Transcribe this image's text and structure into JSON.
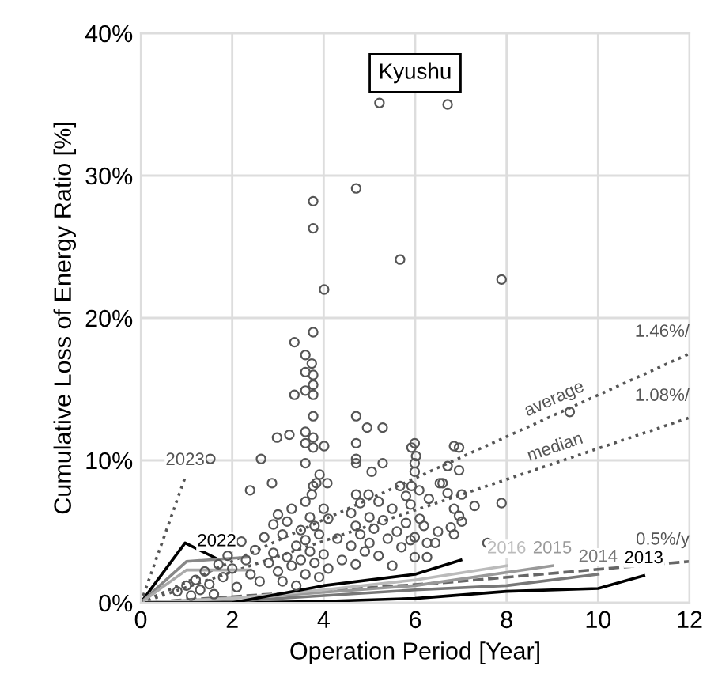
{
  "chart_data": {
    "type": "scatter",
    "title": "Kyushu",
    "xlabel": "Operation Period [Year]",
    "ylabel": "Cumulative Loss of Energy Ratio [%]",
    "xlim": [
      0,
      12
    ],
    "xticks": [
      0,
      2,
      4,
      6,
      8,
      10,
      12
    ],
    "ylim": [
      0,
      40
    ],
    "yticks": [
      {
        "value": 0,
        "label": "0%"
      },
      {
        "value": 10,
        "label": "10%"
      },
      {
        "value": 20,
        "label": "20%"
      },
      {
        "value": 30,
        "label": "30%"
      },
      {
        "value": 40,
        "label": "40%"
      }
    ],
    "grid": true,
    "series": [
      {
        "color": "#555555",
        "marker": "circle",
        "x": [
          5.22,
          6.71,
          4.71,
          3.77,
          3.77,
          5.67,
          4.01,
          7.89,
          3.36,
          3.77,
          3.6,
          3.74,
          3.6,
          3.77,
          3.77,
          3.6,
          3.36,
          3.77,
          3.77,
          4.71,
          4.95,
          5.29,
          2.98,
          3.25,
          3.6,
          3.77,
          3.6,
          3.77,
          4.01,
          4.71,
          4.71,
          4.71,
          5.29,
          5.05,
          5.99,
          5.92,
          6.02,
          5.99,
          5.99,
          2.63,
          1.52,
          3.6,
          3.91,
          3.77,
          3.84,
          4.08,
          2.87,
          2.39,
          3.74,
          4.71,
          4.98,
          5.67,
          5.92,
          6.09,
          6.54,
          6.85,
          6.96,
          6.71,
          6.96,
          6.6,
          6.71,
          7.02,
          7.3,
          7.89,
          6.85,
          6.96,
          7.02,
          6.78,
          6.85,
          6.19,
          7.58,
          6.26,
          6.44,
          5.99,
          5.99,
          6.26,
          9.38,
          0.8,
          1.0,
          1.1,
          1.2,
          1.3,
          1.4,
          1.5,
          1.6,
          1.7,
          1.8,
          1.9,
          2.0,
          2.1,
          2.2,
          2.3,
          2.4,
          2.5,
          2.6,
          2.7,
          2.8,
          2.9,
          2.9,
          3.0,
          3.0,
          3.1,
          3.1,
          3.2,
          3.2,
          3.3,
          3.3,
          3.4,
          3.4,
          3.5,
          3.5,
          3.6,
          3.6,
          3.6,
          3.7,
          3.7,
          3.8,
          3.8,
          3.9,
          3.9,
          4.0,
          4.0,
          4.1,
          4.1,
          4.3,
          4.4,
          4.6,
          4.6,
          4.7,
          4.7,
          4.8,
          4.8,
          4.9,
          5.0,
          5.0,
          5.1,
          5.2,
          5.2,
          5.3,
          5.4,
          5.5,
          5.5,
          5.6,
          5.7,
          5.8,
          5.8,
          5.9,
          5.9,
          6.1,
          6.3,
          6.5
        ],
        "values": [
          35.1,
          35.0,
          29.1,
          28.2,
          26.3,
          24.1,
          22.0,
          22.7,
          18.3,
          19.0,
          17.4,
          16.8,
          16.2,
          16.0,
          15.3,
          14.9,
          14.6,
          14.6,
          13.1,
          13.1,
          12.3,
          12.3,
          11.6,
          11.8,
          12.0,
          11.6,
          11.2,
          10.9,
          11.0,
          11.2,
          10.1,
          9.8,
          9.8,
          9.2,
          11.2,
          10.9,
          10.3,
          9.8,
          9.2,
          10.1,
          10.1,
          9.8,
          9.0,
          8.2,
          8.4,
          8.4,
          8.4,
          7.9,
          7.6,
          7.6,
          7.6,
          8.2,
          8.2,
          7.9,
          8.4,
          11.0,
          10.9,
          9.6,
          9.3,
          8.4,
          7.7,
          7.6,
          6.8,
          7.0,
          6.6,
          6.1,
          5.7,
          5.3,
          4.8,
          5.4,
          4.2,
          4.2,
          4.2,
          4.6,
          3.2,
          3.2,
          13.4,
          0.8,
          1.2,
          0.5,
          1.6,
          0.9,
          2.2,
          1.3,
          0.6,
          2.7,
          1.8,
          3.3,
          2.4,
          1.1,
          4.3,
          3.0,
          2.0,
          3.7,
          1.5,
          4.6,
          2.8,
          5.5,
          3.5,
          6.2,
          2.2,
          4.8,
          1.5,
          5.7,
          3.2,
          6.6,
          2.6,
          4.0,
          1.2,
          5.1,
          3.0,
          7.1,
          4.4,
          2.0,
          6.0,
          3.6,
          5.4,
          2.8,
          4.8,
          1.8,
          6.6,
          3.4,
          5.9,
          2.4,
          4.5,
          3.0,
          6.3,
          4.0,
          5.4,
          2.7,
          7.0,
          4.8,
          3.6,
          6.0,
          4.2,
          5.2,
          7.1,
          3.3,
          5.8,
          4.5,
          2.6,
          6.6,
          5.0,
          3.9,
          7.5,
          5.6,
          4.4,
          6.9,
          5.9,
          7.3,
          5.0
        ]
      },
      {
        "type": "line",
        "name": "average",
        "color": "#555555",
        "line_style": "dotted",
        "x": [
          0,
          12
        ],
        "values": [
          0,
          17.5
        ]
      },
      {
        "type": "line",
        "name": "median",
        "color": "#555555",
        "line_style": "dotted",
        "x": [
          0,
          12
        ],
        "values": [
          0,
          13.0
        ]
      },
      {
        "type": "line",
        "color": "#666666",
        "line_style": "dashed",
        "x": [
          0,
          6.6,
          12
        ],
        "values": [
          0,
          1.4,
          2.9
        ]
      },
      {
        "type": "line",
        "name": "2013",
        "color": "#000000",
        "line_style": "solid",
        "x": [
          0,
          2,
          4,
          6,
          8,
          10,
          11
        ],
        "values": [
          0,
          0,
          0.1,
          0.3,
          0.8,
          1.0,
          1.9
        ]
      },
      {
        "type": "line",
        "name": "2014",
        "color": "#777777",
        "line_style": "solid",
        "x": [
          0,
          2,
          4,
          6,
          8,
          10
        ],
        "values": [
          0,
          0.1,
          0.5,
          0.9,
          1.2,
          2.0
        ]
      },
      {
        "type": "line",
        "name": "2015",
        "color": "#999999",
        "line_style": "solid",
        "x": [
          0,
          3,
          6,
          9
        ],
        "values": [
          0,
          0.5,
          1.2,
          2.6
        ]
      },
      {
        "type": "line",
        "name": "2016",
        "color": "#bbbbbb",
        "line_style": "solid",
        "x": [
          0,
          2,
          4,
          6,
          8
        ],
        "values": [
          0,
          0.3,
          0.9,
          1.6,
          2.6
        ]
      },
      {
        "type": "line",
        "color": "#000000",
        "line_style": "solid",
        "x": [
          0,
          2,
          4,
          6,
          7
        ],
        "values": [
          0,
          0,
          1.2,
          2.0,
          3.0
        ]
      },
      {
        "type": "line",
        "name": "2022",
        "color": "#000000",
        "line_style": "solid",
        "x": [
          0,
          0.97,
          1.66
        ],
        "values": [
          0,
          4.2,
          3.1
        ]
      },
      {
        "type": "line",
        "color": "#888888",
        "line_style": "solid",
        "x": [
          0,
          1.0,
          2.35
        ],
        "values": [
          0,
          2.9,
          3.2
        ]
      },
      {
        "type": "line",
        "color": "#aaaaaa",
        "line_style": "solid",
        "x": [
          0,
          1.0,
          2.4
        ],
        "values": [
          0,
          2.3,
          2.3
        ]
      },
      {
        "type": "line",
        "name": "2023",
        "color": "#555555",
        "line_style": "dotted",
        "x": [
          0,
          0.97
        ],
        "values": [
          0,
          8.8
        ]
      }
    ],
    "annotations": [
      "1.46%/",
      "1.08%/",
      "0.5%/y"
    ]
  }
}
